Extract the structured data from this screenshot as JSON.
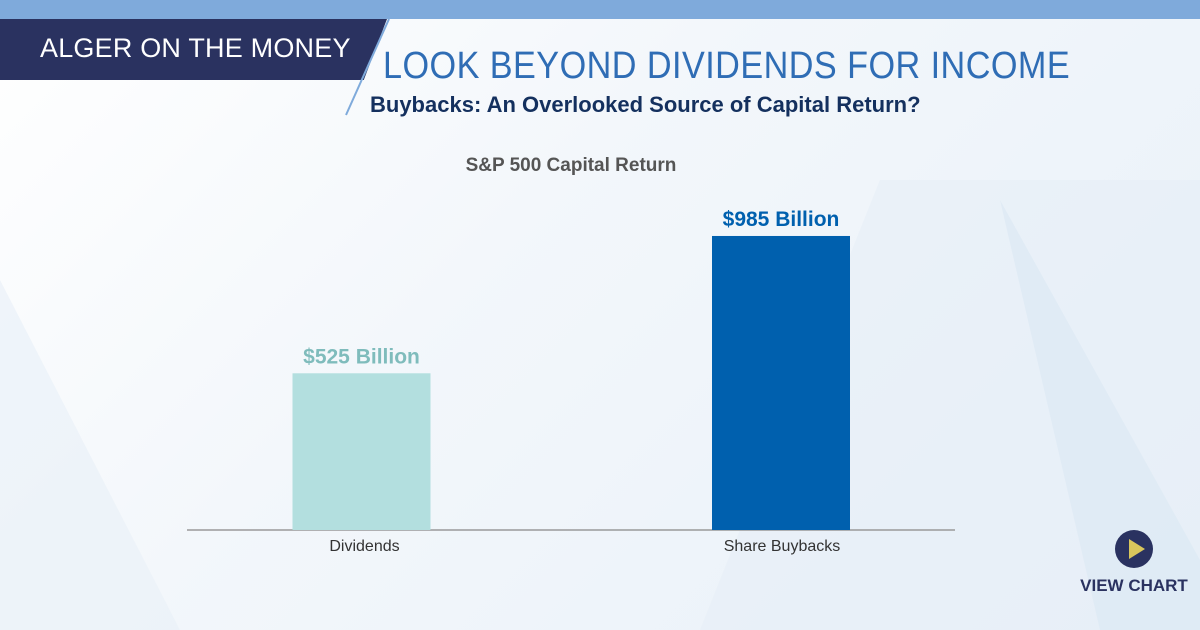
{
  "header": {
    "series_label": "ALGER ON THE MONEY",
    "title": "LOOK BEYOND DIVIDENDS FOR INCOME",
    "subtitle": "Buybacks: An Overlooked Source of Capital Return?"
  },
  "chart_data": {
    "type": "bar",
    "title": "S&P 500 Capital Return",
    "categories": [
      "Dividends",
      "Share Buybacks"
    ],
    "values": [
      525,
      985
    ],
    "data_labels": [
      "$525 Billion",
      "$985 Billion"
    ],
    "colors": [
      "#b3dfdf",
      "#0060ae"
    ],
    "label_colors": [
      "#7fbcbc",
      "#0060ae"
    ],
    "ylim": [
      0,
      1000
    ],
    "grid": false,
    "xlabel": "",
    "ylabel": ""
  },
  "cta": {
    "label": "VIEW CHART",
    "icon": "play-icon",
    "colors": {
      "circle": "#2a3260",
      "triangle": "#d9c65c"
    }
  }
}
